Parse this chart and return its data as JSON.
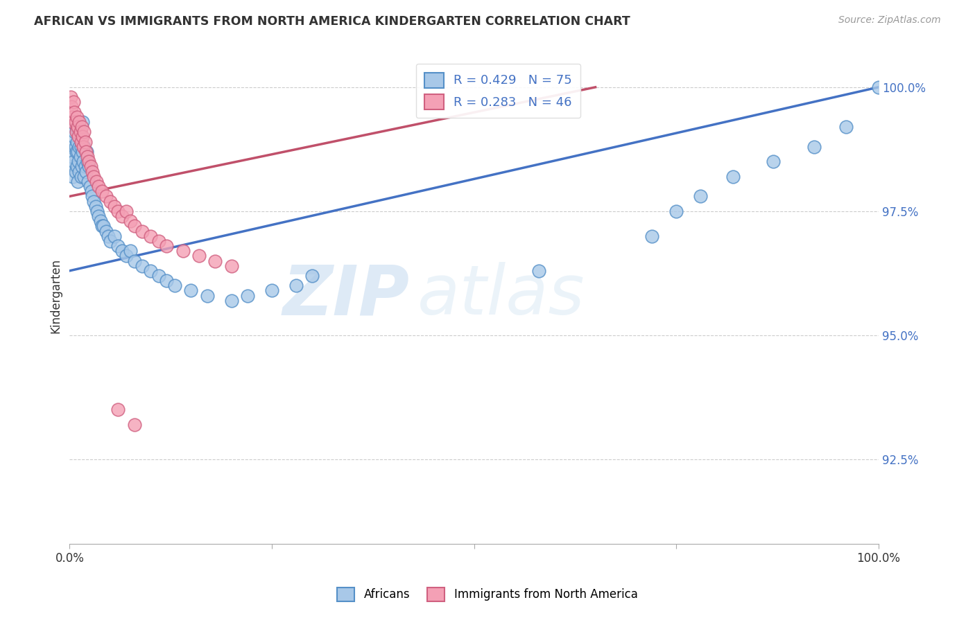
{
  "title": "AFRICAN VS IMMIGRANTS FROM NORTH AMERICA KINDERGARTEN CORRELATION CHART",
  "source": "Source: ZipAtlas.com",
  "ylabel": "Kindergarten",
  "ytick_labels": [
    "100.0%",
    "97.5%",
    "95.0%",
    "92.5%"
  ],
  "ytick_values": [
    1.0,
    0.975,
    0.95,
    0.925
  ],
  "xlim": [
    0.0,
    1.0
  ],
  "ylim": [
    0.908,
    1.008
  ],
  "legend_label_blue": "Africans",
  "legend_label_pink": "Immigrants from North America",
  "r_blue": 0.429,
  "n_blue": 75,
  "r_pink": 0.283,
  "n_pink": 46,
  "color_blue": "#A8C8E8",
  "color_pink": "#F4A0B5",
  "edge_blue": "#5590C8",
  "edge_pink": "#D06080",
  "line_color_blue": "#4472C4",
  "line_color_pink": "#C0506A",
  "watermark_zip": "ZIP",
  "watermark_atlas": "atlas",
  "blue_x": [
    0.001,
    0.002,
    0.003,
    0.004,
    0.005,
    0.005,
    0.006,
    0.007,
    0.007,
    0.008,
    0.008,
    0.009,
    0.009,
    0.01,
    0.01,
    0.011,
    0.011,
    0.012,
    0.012,
    0.013,
    0.014,
    0.014,
    0.015,
    0.015,
    0.016,
    0.016,
    0.017,
    0.018,
    0.018,
    0.019,
    0.02,
    0.021,
    0.022,
    0.023,
    0.024,
    0.025,
    0.027,
    0.028,
    0.03,
    0.032,
    0.034,
    0.036,
    0.038,
    0.04,
    0.042,
    0.045,
    0.048,
    0.05,
    0.055,
    0.06,
    0.065,
    0.07,
    0.075,
    0.08,
    0.09,
    0.1,
    0.11,
    0.12,
    0.13,
    0.15,
    0.17,
    0.2,
    0.22,
    0.25,
    0.28,
    0.3,
    0.58,
    0.72,
    0.75,
    0.78,
    0.82,
    0.87,
    0.92,
    0.96,
    1.0
  ],
  "blue_y": [
    0.988,
    0.984,
    0.986,
    0.982,
    0.99,
    0.985,
    0.991,
    0.983,
    0.988,
    0.987,
    0.992,
    0.984,
    0.989,
    0.981,
    0.987,
    0.985,
    0.991,
    0.983,
    0.988,
    0.986,
    0.982,
    0.988,
    0.984,
    0.99,
    0.987,
    0.993,
    0.985,
    0.982,
    0.988,
    0.984,
    0.983,
    0.987,
    0.985,
    0.981,
    0.984,
    0.98,
    0.979,
    0.978,
    0.977,
    0.976,
    0.975,
    0.974,
    0.973,
    0.972,
    0.972,
    0.971,
    0.97,
    0.969,
    0.97,
    0.968,
    0.967,
    0.966,
    0.967,
    0.965,
    0.964,
    0.963,
    0.962,
    0.961,
    0.96,
    0.959,
    0.958,
    0.957,
    0.958,
    0.959,
    0.96,
    0.962,
    0.963,
    0.97,
    0.975,
    0.978,
    0.982,
    0.985,
    0.988,
    0.992,
    1.0
  ],
  "pink_x": [
    0.001,
    0.002,
    0.003,
    0.004,
    0.005,
    0.006,
    0.007,
    0.008,
    0.009,
    0.01,
    0.011,
    0.012,
    0.013,
    0.014,
    0.015,
    0.016,
    0.017,
    0.018,
    0.019,
    0.02,
    0.022,
    0.024,
    0.026,
    0.028,
    0.03,
    0.033,
    0.036,
    0.04,
    0.045,
    0.05,
    0.055,
    0.06,
    0.065,
    0.07,
    0.075,
    0.08,
    0.09,
    0.1,
    0.11,
    0.12,
    0.14,
    0.16,
    0.18,
    0.2,
    0.06,
    0.08
  ],
  "pink_y": [
    0.998,
    0.996,
    0.994,
    0.993,
    0.997,
    0.995,
    0.993,
    0.991,
    0.994,
    0.992,
    0.99,
    0.993,
    0.991,
    0.989,
    0.992,
    0.99,
    0.988,
    0.991,
    0.989,
    0.987,
    0.986,
    0.985,
    0.984,
    0.983,
    0.982,
    0.981,
    0.98,
    0.979,
    0.978,
    0.977,
    0.976,
    0.975,
    0.974,
    0.975,
    0.973,
    0.972,
    0.971,
    0.97,
    0.969,
    0.968,
    0.967,
    0.966,
    0.965,
    0.964,
    0.935,
    0.932
  ],
  "trend_blue_x0": 0.0,
  "trend_blue_y0": 0.963,
  "trend_blue_x1": 1.0,
  "trend_blue_y1": 1.0,
  "trend_pink_x0": 0.0,
  "trend_pink_y0": 0.978,
  "trend_pink_x1": 0.65,
  "trend_pink_y1": 1.0
}
